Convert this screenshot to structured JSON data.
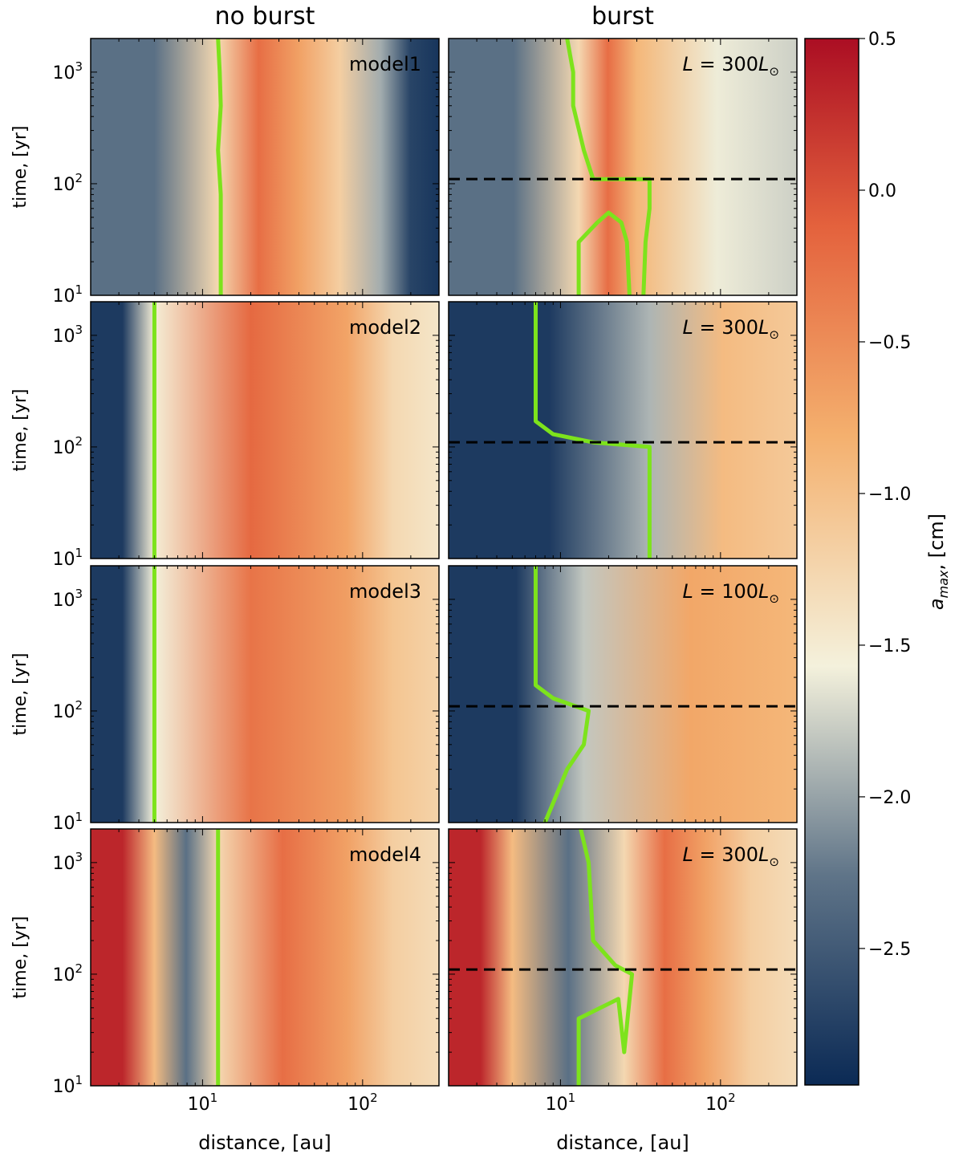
{
  "column_titles": [
    "no burst",
    "burst"
  ],
  "x_axis": {
    "label": "distance, [au]",
    "scale": "log",
    "range": [
      2,
      300
    ],
    "ticks": [
      {
        "base": "10",
        "exp": "1"
      },
      {
        "base": "10",
        "exp": "2"
      }
    ]
  },
  "y_axis": {
    "label": "time, [yr]",
    "scale": "log",
    "range": [
      10,
      2000
    ],
    "ticks": [
      {
        "value": 10,
        "base": "10",
        "exp": "1"
      },
      {
        "value": 100,
        "base": "10",
        "exp": "2"
      },
      {
        "value": 1000,
        "base": "10",
        "exp": "3"
      }
    ]
  },
  "colorbar": {
    "label": "a_max, [cm]",
    "range": [
      -2.95,
      0.5
    ],
    "ticks": [
      0.5,
      0.0,
      -0.5,
      -1.0,
      -1.5,
      -2.0,
      -2.5
    ],
    "tick_labels": [
      "0.5",
      "0.0",
      "−0.5",
      "−1.0",
      "−1.5",
      "−2.0",
      "−2.5"
    ],
    "colormap": "RdYlBu_r-like",
    "colors": [
      "#0b2a55",
      "#5f7488",
      "#f4f1dc",
      "#f4b06e",
      "#e4623d",
      "#ab0e23"
    ]
  },
  "line_color": "#7de31c",
  "burst_marker_color": "#000000",
  "chart_data": {
    "type": "heatmap",
    "description_free": true,
    "burst_time_yr": 110,
    "panels": [
      {
        "row": 1,
        "column": "no burst",
        "annotation": "model1",
        "boundary": [
          [
            13,
            10
          ],
          [
            13,
            80
          ],
          [
            12.5,
            200
          ],
          [
            13,
            500
          ],
          [
            12.8,
            1000
          ],
          [
            12.5,
            2000
          ]
        ],
        "regions": [
          {
            "x": [
              2,
              12.5
            ],
            "a_max": -2.3
          },
          {
            "x": [
              12.5,
              40
            ],
            "a_max": -0.3
          },
          {
            "x": [
              40,
              130
            ],
            "a_max": -1.2
          },
          {
            "x": [
              130,
              300
            ],
            "a_max": -2.7
          }
        ]
      },
      {
        "row": 1,
        "column": "burst",
        "annotation_prefix": "L = ",
        "annotation_value": "300",
        "annotation_unit": "L⊙",
        "boundary": [
          [
            13,
            10
          ],
          [
            13,
            30
          ],
          [
            17,
            45
          ],
          [
            20,
            55
          ],
          [
            24,
            45
          ],
          [
            26,
            30
          ],
          [
            27,
            10
          ]
        ],
        "boundary_outer": [
          [
            16,
            110
          ],
          [
            36,
            110
          ],
          [
            36,
            60
          ],
          [
            34,
            30
          ],
          [
            33,
            10
          ]
        ],
        "boundary_upper": [
          [
            16,
            110
          ],
          [
            14,
            200
          ],
          [
            12,
            500
          ],
          [
            12,
            1000
          ],
          [
            11,
            2000
          ]
        ],
        "regions": [
          {
            "x": [
              2,
              13
            ],
            "a_max": -2.3
          },
          {
            "x": [
              13,
              30
            ],
            "a_max": -0.3
          },
          {
            "x": [
              30,
              300
            ],
            "a_max": -1.6
          }
        ]
      },
      {
        "row": 2,
        "column": "no burst",
        "annotation": "model2",
        "boundary": [
          [
            5,
            10
          ],
          [
            5,
            2000
          ]
        ],
        "regions": [
          {
            "x": [
              2,
              5
            ],
            "a_max": -2.8
          },
          {
            "x": [
              5,
              80
            ],
            "a_max": -0.25
          },
          {
            "x": [
              80,
              300
            ],
            "a_max": -1.3
          }
        ]
      },
      {
        "row": 2,
        "column": "burst",
        "annotation_prefix": "L = ",
        "annotation_value": "300",
        "annotation_unit": "L⊙",
        "boundary": [
          [
            7,
            2000
          ],
          [
            7,
            170
          ],
          [
            9,
            130
          ],
          [
            16,
            110
          ],
          [
            36,
            100
          ],
          [
            36,
            10
          ]
        ],
        "regions": [
          {
            "x": [
              2,
              36
            ],
            "a_max": -2.8
          },
          {
            "x": [
              36,
              300
            ],
            "a_max": -1.0
          }
        ]
      },
      {
        "row": 3,
        "column": "no burst",
        "annotation": "model3",
        "boundary": [
          [
            5,
            10
          ],
          [
            5,
            2000
          ]
        ],
        "regions": [
          {
            "x": [
              2,
              5
            ],
            "a_max": -2.8
          },
          {
            "x": [
              5,
              80
            ],
            "a_max": -0.35
          },
          {
            "x": [
              80,
              300
            ],
            "a_max": -1.1
          }
        ]
      },
      {
        "row": 3,
        "column": "burst",
        "annotation_prefix": "L = ",
        "annotation_value": "100",
        "annotation_unit": "L⊙",
        "boundary": [
          [
            7,
            2000
          ],
          [
            7,
            170
          ],
          [
            9,
            130
          ],
          [
            15,
            100
          ],
          [
            14,
            50
          ],
          [
            11,
            30
          ],
          [
            9,
            15
          ],
          [
            8,
            10
          ]
        ],
        "regions": [
          {
            "x": [
              2,
              14
            ],
            "a_max": -2.8
          },
          {
            "x": [
              14,
              300
            ],
            "a_max": -0.8
          }
        ]
      },
      {
        "row": 4,
        "column": "no burst",
        "annotation": "model4",
        "boundary": [
          [
            12.5,
            10
          ],
          [
            12.5,
            2400
          ]
        ],
        "regions": [
          {
            "x": [
              2,
              5
            ],
            "a_max": 0.3
          },
          {
            "x": [
              5,
              12.5
            ],
            "a_max": -2.3
          },
          {
            "x": [
              12.5,
              80
            ],
            "a_max": -0.3
          },
          {
            "x": [
              80,
              300
            ],
            "a_max": -1.2
          }
        ]
      },
      {
        "row": 4,
        "column": "burst",
        "annotation_prefix": "L = ",
        "annotation_value": "300",
        "annotation_unit": "L⊙",
        "boundary": [
          [
            13,
            2400
          ],
          [
            15,
            1000
          ],
          [
            16,
            200
          ],
          [
            22,
            120
          ],
          [
            28,
            100
          ],
          [
            25,
            20
          ],
          [
            23,
            60
          ],
          [
            13,
            40
          ],
          [
            13,
            10
          ]
        ],
        "regions": [
          {
            "x": [
              2,
              5
            ],
            "a_max": 0.3
          },
          {
            "x": [
              5,
              25
            ],
            "a_max": -2.3
          },
          {
            "x": [
              25,
              80
            ],
            "a_max": -0.3
          },
          {
            "x": [
              80,
              300
            ],
            "a_max": -1.2
          }
        ]
      }
    ]
  }
}
